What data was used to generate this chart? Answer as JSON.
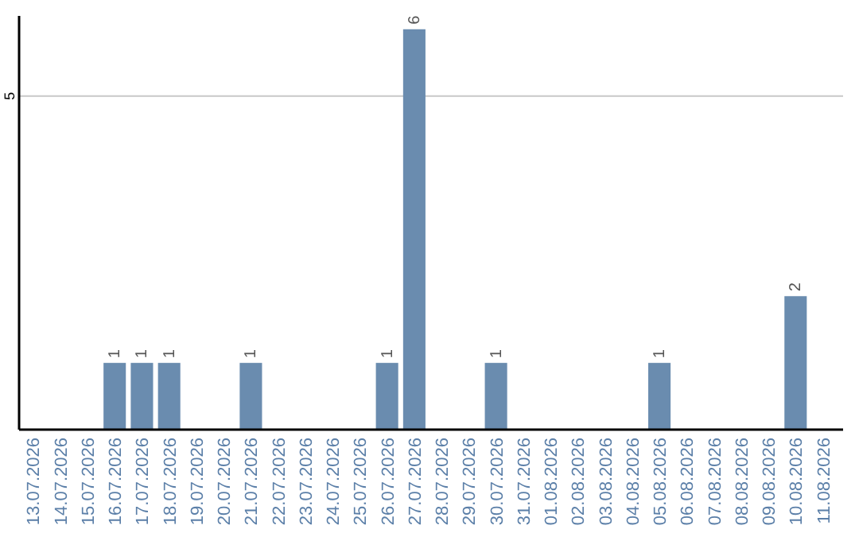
{
  "chart_data": {
    "type": "bar",
    "categories": [
      "13.07.2026",
      "14.07.2026",
      "15.07.2026",
      "16.07.2026",
      "17.07.2026",
      "18.07.2026",
      "19.07.2026",
      "20.07.2026",
      "21.07.2026",
      "22.07.2026",
      "23.07.2026",
      "24.07.2026",
      "25.07.2026",
      "26.07.2026",
      "27.07.2026",
      "28.07.2026",
      "29.07.2026",
      "30.07.2026",
      "31.07.2026",
      "01.08.2026",
      "02.08.2026",
      "03.08.2026",
      "04.08.2026",
      "05.08.2026",
      "06.08.2026",
      "07.08.2026",
      "08.08.2026",
      "09.08.2026",
      "10.08.2026",
      "11.08.2026"
    ],
    "values": [
      0,
      0,
      0,
      1,
      1,
      1,
      0,
      0,
      1,
      0,
      0,
      0,
      0,
      1,
      6,
      0,
      0,
      1,
      0,
      0,
      0,
      0,
      0,
      1,
      0,
      0,
      0,
      0,
      2,
      0
    ],
    "value_labels": [
      null,
      null,
      null,
      "1",
      "1",
      "1",
      null,
      null,
      "1",
      null,
      null,
      null,
      null,
      "1",
      "6",
      null,
      null,
      "1",
      null,
      null,
      null,
      null,
      null,
      "1",
      null,
      null,
      null,
      null,
      "2",
      null
    ],
    "color": "#6a8caf",
    "ylim": [
      0,
      6.2
    ],
    "yticks": [
      5
    ],
    "grid": "y"
  }
}
